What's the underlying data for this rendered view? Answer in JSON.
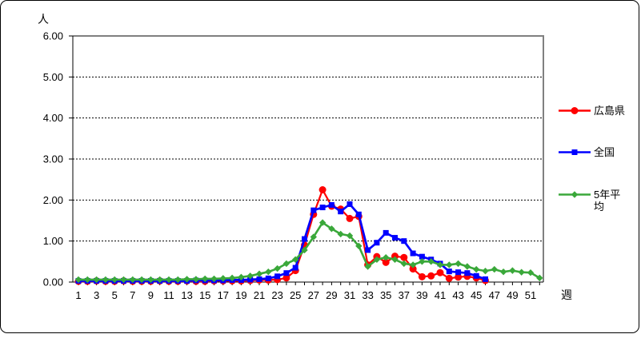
{
  "chart": {
    "y_axis_unit": "人",
    "x_axis_unit": "週",
    "legend": [
      {
        "label": "広島県",
        "color": "#ff0000",
        "marker": "circle"
      },
      {
        "label": "全国",
        "color": "#0000ff",
        "marker": "square"
      },
      {
        "label": "5年平均",
        "color": "#3aa83a",
        "marker": "diamond"
      }
    ],
    "colors": {
      "plot_border_gray": "#808080",
      "axis_black": "#000000",
      "background": "#ffffff"
    }
  },
  "chart_data": {
    "type": "line",
    "title": "",
    "xlabel": "週",
    "ylabel": "人",
    "x_range": [
      1,
      52
    ],
    "ylim": [
      0,
      6
    ],
    "y_ticks": [
      "6.00",
      "5.00",
      "4.00",
      "3.00",
      "2.00",
      "1.00",
      "0.00"
    ],
    "x_tick_labels": [
      1,
      3,
      5,
      7,
      9,
      11,
      13,
      15,
      17,
      19,
      21,
      23,
      25,
      27,
      29,
      31,
      33,
      35,
      37,
      39,
      41,
      43,
      45,
      47,
      49,
      51
    ],
    "grid": "horizontal-dashed",
    "legend_position": "right-outside",
    "series": [
      {
        "name": "広島県",
        "color": "#ff0000",
        "marker": "circle",
        "line_width": 2.2,
        "values": [
          0.02,
          0.02,
          0.03,
          0.02,
          0.02,
          0.03,
          0.02,
          0.02,
          0.02,
          0.03,
          0.02,
          0.02,
          0.03,
          0.02,
          0.02,
          0.03,
          0.03,
          0.03,
          0.03,
          0.04,
          0.05,
          0.05,
          0.06,
          0.1,
          0.28,
          0.9,
          1.65,
          2.25,
          1.85,
          1.78,
          1.55,
          1.6,
          0.42,
          0.62,
          0.48,
          0.63,
          0.6,
          0.32,
          0.13,
          0.15,
          0.23,
          0.09,
          0.12,
          0.14,
          0.1,
          0.04
        ]
      },
      {
        "name": "全国",
        "color": "#0000ff",
        "marker": "square",
        "line_width": 2.7,
        "values": [
          0.03,
          0.03,
          0.03,
          0.03,
          0.03,
          0.03,
          0.03,
          0.03,
          0.03,
          0.03,
          0.03,
          0.03,
          0.03,
          0.04,
          0.04,
          0.04,
          0.04,
          0.05,
          0.05,
          0.06,
          0.07,
          0.09,
          0.14,
          0.22,
          0.35,
          1.05,
          1.75,
          1.82,
          1.88,
          1.72,
          1.9,
          1.65,
          0.78,
          0.96,
          1.2,
          1.08,
          1.0,
          0.7,
          0.62,
          0.55,
          0.45,
          0.26,
          0.24,
          0.22,
          0.15,
          0.07
        ]
      },
      {
        "name": "5年平均",
        "color": "#3aa83a",
        "marker": "diamond",
        "line_width": 2.6,
        "values": [
          0.06,
          0.06,
          0.06,
          0.06,
          0.06,
          0.06,
          0.06,
          0.06,
          0.06,
          0.06,
          0.06,
          0.06,
          0.07,
          0.07,
          0.08,
          0.08,
          0.09,
          0.1,
          0.12,
          0.15,
          0.2,
          0.25,
          0.33,
          0.45,
          0.55,
          0.78,
          1.1,
          1.45,
          1.3,
          1.17,
          1.13,
          0.88,
          0.38,
          0.55,
          0.6,
          0.55,
          0.45,
          0.42,
          0.5,
          0.5,
          0.42,
          0.42,
          0.45,
          0.38,
          0.31,
          0.27,
          0.31,
          0.25,
          0.28,
          0.24,
          0.23,
          0.1
        ]
      }
    ]
  }
}
